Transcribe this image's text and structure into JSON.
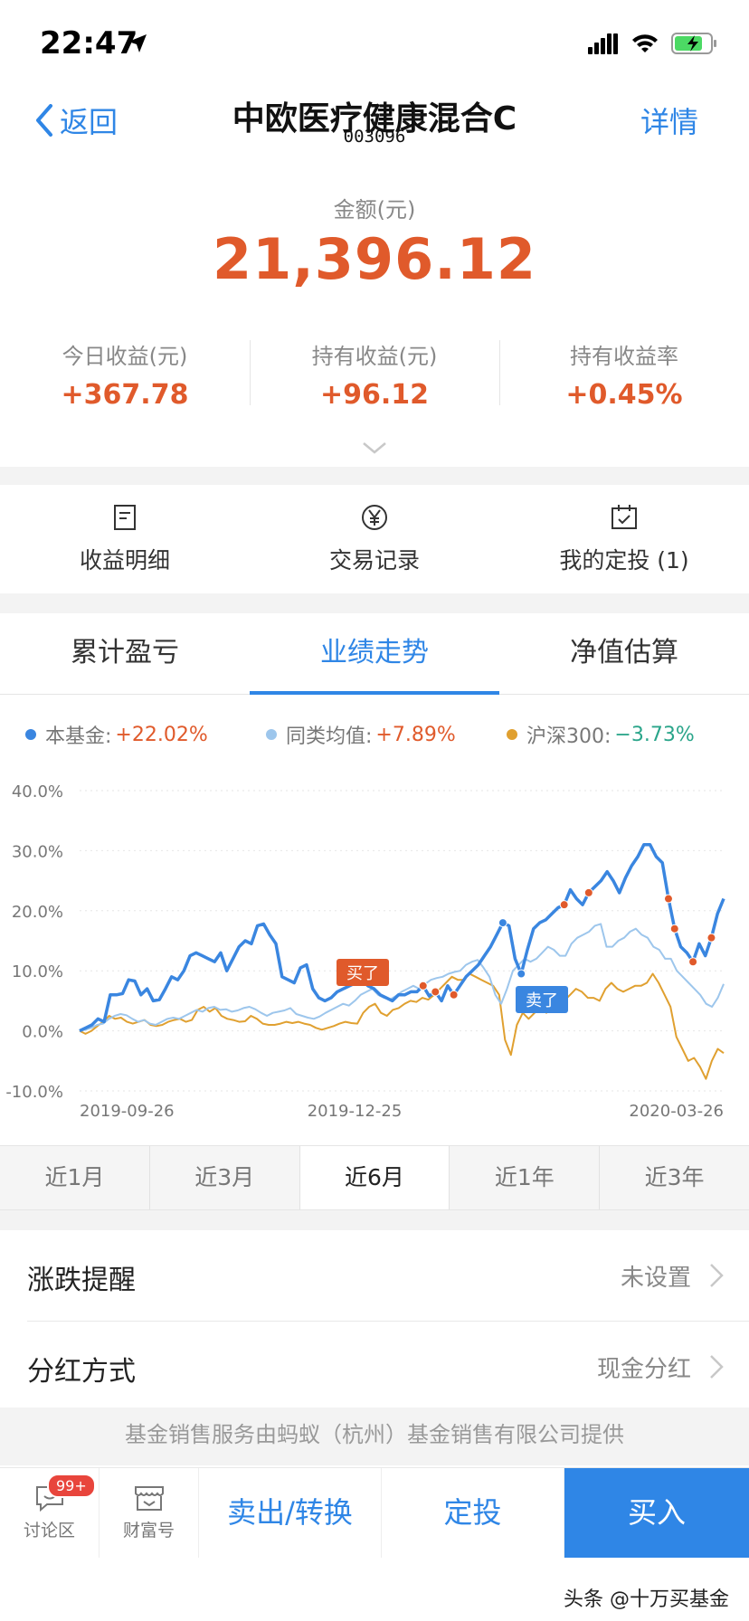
{
  "status": {
    "time": "22:47"
  },
  "nav": {
    "back_label": "返回",
    "title": "中欧医疗健康混合C",
    "code": "003096",
    "detail_label": "详情"
  },
  "amount": {
    "label": "金额(元)",
    "value": "21,396.12"
  },
  "stats": [
    {
      "label": "今日收益(元)",
      "value": "+367.78"
    },
    {
      "label": "持有收益(元)",
      "value": "+96.12"
    },
    {
      "label": "持有收益率",
      "value": "+0.45%"
    }
  ],
  "quick": [
    {
      "label": "收益明细",
      "icon": "document-icon"
    },
    {
      "label": "交易记录",
      "icon": "yuan-icon"
    },
    {
      "label": "我的定投 (1)",
      "icon": "calendar-icon"
    }
  ],
  "tabs": [
    "累计盈亏",
    "业绩走势",
    "净值估算"
  ],
  "active_tab": 1,
  "legend": [
    {
      "name": "本基金:",
      "value": "+22.02%",
      "color": "#3a86e0",
      "value_color": "#e05a2b"
    },
    {
      "name": "同类均值:",
      "value": "+7.89%",
      "color": "#9dc6ec",
      "value_color": "#e05a2b"
    },
    {
      "name": "沪深300:",
      "value": "−3.73%",
      "color": "#e0a030",
      "value_color": "#2aa58a"
    }
  ],
  "chart_data": {
    "type": "line",
    "y_ticks": [
      "40.0%",
      "30.0%",
      "20.0%",
      "10.0%",
      "0.0%",
      "-10.0%"
    ],
    "ylim": [
      -10,
      40
    ],
    "x_ticks": [
      "2019-09-26",
      "2019-12-25",
      "2020-03-26"
    ],
    "series": [
      {
        "name": "本基金",
        "color": "#3a86e0",
        "values": [
          0,
          0.5,
          1,
          2,
          1.5,
          6,
          6,
          6.2,
          8.5,
          8.3,
          6,
          7,
          5,
          5.2,
          7,
          9,
          8.5,
          10,
          12.5,
          13,
          12.5,
          12,
          11.5,
          13,
          10,
          12,
          14,
          15,
          14.5,
          17.5,
          17.8,
          16,
          14.5,
          9,
          8.5,
          8,
          10.5,
          11,
          7,
          5.5,
          5,
          5.5,
          6.5,
          7,
          7.5,
          8,
          8.5,
          7.5,
          7,
          6,
          5.5,
          5,
          6,
          6,
          6.5,
          6.5,
          7.5,
          5.8,
          6.5,
          5,
          7.5,
          6,
          7.5,
          9,
          10,
          11,
          12.5,
          14,
          16,
          18,
          17.5,
          12,
          9.5,
          13.5,
          17,
          18,
          18.5,
          19.5,
          20.5,
          21,
          23.5,
          22,
          21,
          23,
          24,
          25,
          26.5,
          25,
          23,
          25.5,
          27.5,
          29,
          31,
          31,
          29,
          28,
          22,
          17,
          14,
          13,
          11.5,
          14.5,
          12.5,
          15.5,
          19.5,
          22
        ]
      },
      {
        "name": "同类均值",
        "color": "#9dc6ec",
        "values": [
          0,
          0.2,
          0.5,
          1,
          1.2,
          2,
          2.5,
          2.8,
          2.6,
          2,
          1.5,
          1.8,
          1.2,
          1,
          1.5,
          2,
          2.2,
          2,
          2.5,
          3,
          3.5,
          3.2,
          3.8,
          4,
          3.5,
          3.6,
          3.2,
          3.4,
          3.8,
          4,
          3.6,
          3,
          2.5,
          3,
          3.2,
          3.4,
          3.8,
          2.8,
          2.5,
          2.2,
          2,
          2.4,
          3,
          3.5,
          4,
          4.5,
          4.2,
          5,
          6,
          6.5,
          7,
          6,
          5.5,
          5.2,
          5.8,
          6.5,
          7,
          7.5,
          7,
          7.8,
          8.5,
          8.8,
          9,
          9.5,
          9.8,
          10,
          11,
          11.5,
          11.8,
          10.5,
          9,
          6,
          4.5,
          7,
          10,
          11,
          12,
          11.5,
          12,
          13,
          14,
          13.5,
          12.5,
          12.5,
          14.5,
          15.5,
          16,
          16.5,
          17.5,
          17.8,
          14,
          14,
          15,
          15.5,
          16.5,
          17,
          16,
          15.5,
          14,
          13.5,
          12,
          12,
          10,
          9,
          8,
          7,
          6,
          4.5,
          4,
          5.5,
          7.8
        ]
      },
      {
        "name": "沪深300",
        "color": "#e0a030",
        "values": [
          0,
          -0.5,
          0,
          0.8,
          1.5,
          2.5,
          2,
          2.2,
          1.5,
          1.2,
          1.5,
          1.8,
          1,
          0.8,
          1,
          1.5,
          1.8,
          2,
          1.5,
          1.8,
          3.5,
          4,
          3.2,
          3.8,
          2.5,
          2,
          1.8,
          1.5,
          1.6,
          2.5,
          2,
          1.2,
          1,
          1,
          1.2,
          1.5,
          1.3,
          1.5,
          1.2,
          1,
          0.5,
          0.2,
          0.5,
          0.8,
          1.2,
          1.5,
          1.3,
          1.2,
          3,
          4,
          4.5,
          3,
          2.5,
          3.5,
          3.8,
          4.5,
          5,
          4.8,
          5.5,
          5.2,
          6,
          7,
          8,
          9,
          8.5,
          8.5,
          9.5,
          9,
          8.5,
          8,
          7.5,
          6,
          -1.5,
          -4,
          1,
          3,
          2,
          3,
          4,
          3,
          4,
          5,
          5,
          6,
          7,
          6.5,
          5.5,
          5.5,
          5,
          7,
          8,
          7,
          6.5,
          7,
          7.5,
          7.5,
          8,
          9.5,
          8,
          6,
          4,
          -1,
          -3,
          -5,
          -4.5,
          -6,
          -8,
          -5,
          -3,
          -3.7
        ]
      }
    ],
    "markers": [
      {
        "label": "买了",
        "color": "#e05a2b"
      },
      {
        "label": "卖了",
        "color": "#3a86e0"
      }
    ]
  },
  "ranges": [
    "近1月",
    "近3月",
    "近6月",
    "近1年",
    "近3年"
  ],
  "active_range": 2,
  "settings": [
    {
      "label": "涨跌提醒",
      "value": "未设置"
    },
    {
      "label": "分红方式",
      "value": "现金分红"
    }
  ],
  "footer_note": "基金销售服务由蚂蚁（杭州）基金销售有限公司提供",
  "bottom_bar": {
    "discuss_label": "讨论区",
    "discuss_badge": "99+",
    "wealth_label": "财富号",
    "sell_label": "卖出/转换",
    "fixed_label": "定投",
    "buy_label": "买入"
  },
  "watermark": "头条 @十万买基金"
}
